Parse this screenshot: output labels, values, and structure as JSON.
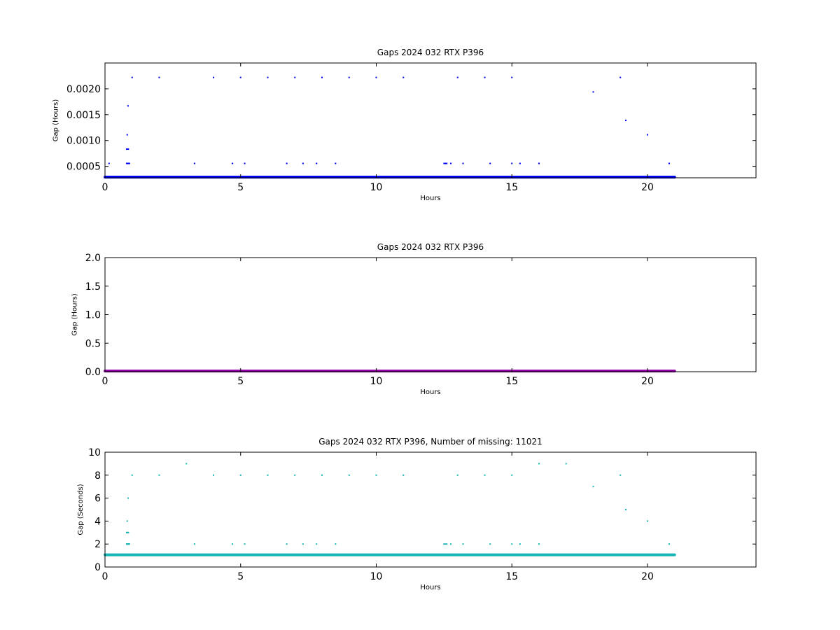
{
  "chart_data": [
    {
      "type": "scatter",
      "title": "Gaps 2024 032 RTX  P396",
      "xlabel": "Hours",
      "ylabel": "Gap (Hours)",
      "xlim": [
        0,
        24
      ],
      "ylim": [
        0.000278,
        0.0025
      ],
      "xticks": [
        0,
        5,
        10,
        15,
        20
      ],
      "yticks": [
        0.0005,
        0.001,
        0.0015,
        0.002
      ],
      "ytick_labels": [
        "0.0005",
        "0.0010",
        "0.0015",
        "0.0020"
      ],
      "color": "#0000ff",
      "baseline": {
        "value": 0.000278,
        "x_start": 0,
        "x_end": 21.0
      },
      "points": [
        {
          "x": 0.15,
          "y": 0.000556
        },
        {
          "x": 0.8,
          "y": 0.000556
        },
        {
          "x": 0.82,
          "y": 0.000556
        },
        {
          "x": 0.84,
          "y": 0.000556
        },
        {
          "x": 0.86,
          "y": 0.000556
        },
        {
          "x": 0.88,
          "y": 0.000556
        },
        {
          "x": 0.9,
          "y": 0.000556
        },
        {
          "x": 0.8,
          "y": 0.000833
        },
        {
          "x": 0.83,
          "y": 0.000833
        },
        {
          "x": 0.86,
          "y": 0.000833
        },
        {
          "x": 0.82,
          "y": 0.00111
        },
        {
          "x": 0.85,
          "y": 0.00167
        },
        {
          "x": 1.0,
          "y": 0.00222
        },
        {
          "x": 2.0,
          "y": 0.00222
        },
        {
          "x": 4.0,
          "y": 0.00222
        },
        {
          "x": 5.0,
          "y": 0.00222
        },
        {
          "x": 6.0,
          "y": 0.00222
        },
        {
          "x": 7.0,
          "y": 0.00222
        },
        {
          "x": 8.0,
          "y": 0.00222
        },
        {
          "x": 9.0,
          "y": 0.00222
        },
        {
          "x": 10.0,
          "y": 0.00222
        },
        {
          "x": 11.0,
          "y": 0.00222
        },
        {
          "x": 13.0,
          "y": 0.00222
        },
        {
          "x": 14.0,
          "y": 0.00222
        },
        {
          "x": 15.0,
          "y": 0.00222
        },
        {
          "x": 19.0,
          "y": 0.00222
        },
        {
          "x": 3.3,
          "y": 0.000556
        },
        {
          "x": 4.7,
          "y": 0.000556
        },
        {
          "x": 5.15,
          "y": 0.000556
        },
        {
          "x": 6.7,
          "y": 0.000556
        },
        {
          "x": 7.3,
          "y": 0.000556
        },
        {
          "x": 7.8,
          "y": 0.000556
        },
        {
          "x": 8.5,
          "y": 0.000556
        },
        {
          "x": 12.5,
          "y": 0.000556
        },
        {
          "x": 12.55,
          "y": 0.000556
        },
        {
          "x": 12.6,
          "y": 0.000556
        },
        {
          "x": 12.75,
          "y": 0.000556
        },
        {
          "x": 13.2,
          "y": 0.000556
        },
        {
          "x": 14.2,
          "y": 0.000556
        },
        {
          "x": 15.0,
          "y": 0.000556
        },
        {
          "x": 15.3,
          "y": 0.000556
        },
        {
          "x": 16.0,
          "y": 0.000556
        },
        {
          "x": 18.0,
          "y": 0.00194
        },
        {
          "x": 19.2,
          "y": 0.00139
        },
        {
          "x": 20.0,
          "y": 0.00111
        },
        {
          "x": 20.8,
          "y": 0.000556
        }
      ]
    },
    {
      "type": "scatter",
      "title": "Gaps 2024 032 RTX  P396",
      "xlabel": "Hours",
      "ylabel": "Gap (Hours)",
      "xlim": [
        0,
        24
      ],
      "ylim": [
        0,
        2.0
      ],
      "xticks": [
        0,
        5,
        10,
        15,
        20
      ],
      "yticks": [
        0.0,
        0.5,
        1.0,
        1.5,
        2.0
      ],
      "ytick_labels": [
        "0.0",
        "0.5",
        "1.0",
        "1.5",
        "2.0"
      ],
      "color": "#9400a8",
      "baseline": {
        "value": 0.0,
        "x_start": 0,
        "x_end": 21.0
      },
      "points": []
    },
    {
      "type": "scatter",
      "title": "Gaps 2024 032 RTX  P396, Number of missing: 11021",
      "xlabel": "Hours",
      "ylabel": "Gap (Seconds)",
      "xlim": [
        0,
        24
      ],
      "ylim": [
        0,
        10
      ],
      "xticks": [
        0,
        5,
        10,
        15,
        20
      ],
      "yticks": [
        0,
        2,
        4,
        6,
        8,
        10
      ],
      "ytick_labels": [
        "0",
        "2",
        "4",
        "6",
        "8",
        "10"
      ],
      "color": "#1ab3b3",
      "baseline": {
        "value": 1,
        "x_start": 0,
        "x_end": 21.0
      },
      "points": [
        {
          "x": 0.8,
          "y": 2
        },
        {
          "x": 0.82,
          "y": 2
        },
        {
          "x": 0.84,
          "y": 2
        },
        {
          "x": 0.86,
          "y": 2
        },
        {
          "x": 0.88,
          "y": 2
        },
        {
          "x": 0.9,
          "y": 2
        },
        {
          "x": 0.8,
          "y": 3
        },
        {
          "x": 0.83,
          "y": 3
        },
        {
          "x": 0.86,
          "y": 3
        },
        {
          "x": 0.82,
          "y": 4
        },
        {
          "x": 0.85,
          "y": 6
        },
        {
          "x": 1.0,
          "y": 8
        },
        {
          "x": 2.0,
          "y": 8
        },
        {
          "x": 3.0,
          "y": 9
        },
        {
          "x": 4.0,
          "y": 8
        },
        {
          "x": 5.0,
          "y": 8
        },
        {
          "x": 6.0,
          "y": 8
        },
        {
          "x": 7.0,
          "y": 8
        },
        {
          "x": 8.0,
          "y": 8
        },
        {
          "x": 9.0,
          "y": 8
        },
        {
          "x": 10.0,
          "y": 8
        },
        {
          "x": 11.0,
          "y": 8
        },
        {
          "x": 13.0,
          "y": 8
        },
        {
          "x": 14.0,
          "y": 8
        },
        {
          "x": 15.0,
          "y": 8
        },
        {
          "x": 16.0,
          "y": 9
        },
        {
          "x": 17.0,
          "y": 9
        },
        {
          "x": 19.0,
          "y": 8
        },
        {
          "x": 3.3,
          "y": 2
        },
        {
          "x": 4.7,
          "y": 2
        },
        {
          "x": 5.15,
          "y": 2
        },
        {
          "x": 6.7,
          "y": 2
        },
        {
          "x": 7.3,
          "y": 2
        },
        {
          "x": 7.8,
          "y": 2
        },
        {
          "x": 8.5,
          "y": 2
        },
        {
          "x": 12.5,
          "y": 2
        },
        {
          "x": 12.55,
          "y": 2
        },
        {
          "x": 12.6,
          "y": 2
        },
        {
          "x": 12.75,
          "y": 2
        },
        {
          "x": 13.2,
          "y": 2
        },
        {
          "x": 14.2,
          "y": 2
        },
        {
          "x": 15.0,
          "y": 2
        },
        {
          "x": 15.3,
          "y": 2
        },
        {
          "x": 16.0,
          "y": 2
        },
        {
          "x": 18.0,
          "y": 7
        },
        {
          "x": 19.2,
          "y": 5
        },
        {
          "x": 20.0,
          "y": 4
        },
        {
          "x": 20.8,
          "y": 2
        }
      ]
    }
  ]
}
